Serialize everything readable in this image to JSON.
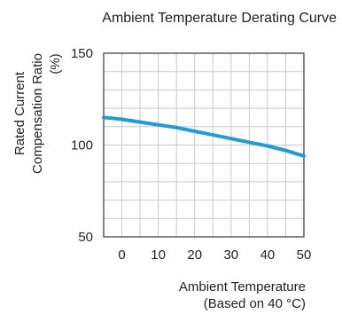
{
  "chart_data": {
    "type": "line",
    "title": "Ambient Temperature Derating Curve",
    "ylabel_lines": [
      "Rated Current",
      "Compensation Ratio",
      "(%)"
    ],
    "xlabel_lines": [
      "Ambient Temperature",
      "(Based on 40 °C)"
    ],
    "xlim": [
      -5,
      50
    ],
    "ylim": [
      50,
      150
    ],
    "xticks": [
      0,
      10,
      20,
      30,
      40,
      50
    ],
    "yticks": [
      50,
      100,
      150
    ],
    "grid": true,
    "series": [
      {
        "color": "#1f9bd6",
        "x": [
          -5,
          0,
          5,
          10,
          15,
          20,
          25,
          30,
          35,
          40,
          45,
          50
        ],
        "y": [
          115,
          114,
          112.5,
          111,
          109.5,
          107.5,
          105.5,
          103.5,
          101.5,
          99.5,
          97,
          94
        ]
      }
    ]
  }
}
